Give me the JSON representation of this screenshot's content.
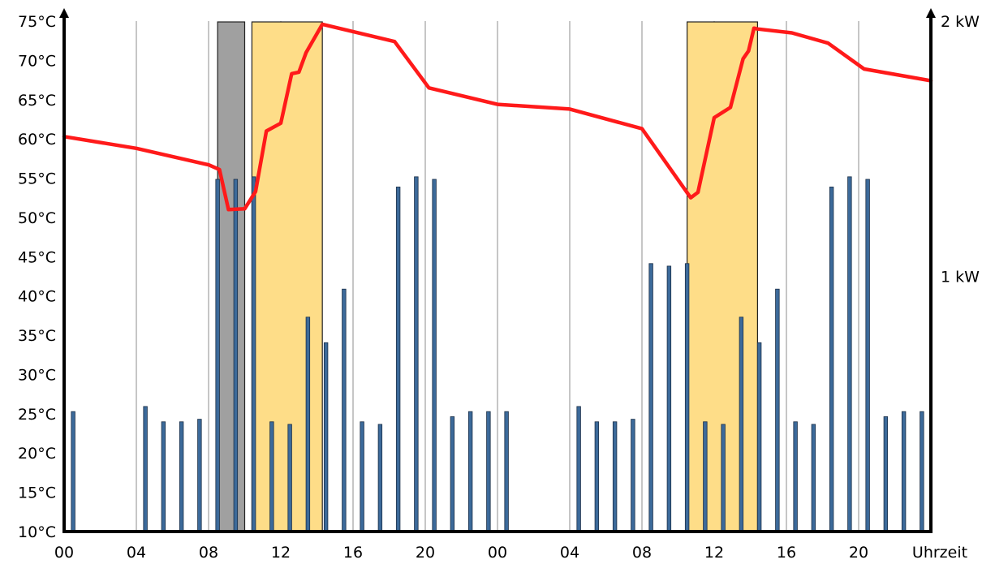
{
  "chart_data": {
    "type": "bar+line",
    "title": "",
    "xlabel": "Uhrzeit",
    "x_tick_labels": [
      "00",
      "04",
      "08",
      "12",
      "16",
      "20",
      "00",
      "04",
      "08",
      "12",
      "16",
      "20"
    ],
    "x_range_hours": [
      0,
      48
    ],
    "y_left": {
      "ticks": [
        "10°C",
        "15°C",
        "20°C",
        "25°C",
        "30°C",
        "35°C",
        "40°C",
        "45°C",
        "50°C",
        "55°C",
        "60°C",
        "65°C",
        "70°C",
        "75°C"
      ],
      "range": [
        10,
        75
      ],
      "unit": "°C"
    },
    "y_right": {
      "ticks": [
        "1 kW",
        "2 kW"
      ],
      "tick_values": [
        1,
        2
      ],
      "range": [
        0,
        2
      ],
      "unit": "kW"
    },
    "grid": {
      "vertical_every_hours": 4
    },
    "shaded_periods": [
      {
        "color": "#a0a0a0",
        "start_h": 8.5,
        "end_h": 10.0
      },
      {
        "color": "#fedd88",
        "start_h": 10.4,
        "end_h": 14.3
      },
      {
        "color": "#fedd88",
        "start_h": 34.5,
        "end_h": 38.4
      }
    ],
    "power_bars": {
      "color": "#3c6a9a",
      "axis": "right",
      "hours": [
        0.5,
        4.5,
        5.5,
        6.5,
        7.5,
        8.5,
        9.5,
        10.5,
        11.5,
        12.5,
        13.5,
        14.5,
        15.5,
        16.5,
        17.5,
        18.5,
        19.5,
        20.5,
        21.5,
        22.5,
        23.5,
        24.5,
        28.5,
        29.5,
        30.5,
        31.5,
        32.5,
        33.5,
        34.5,
        35.5,
        36.5,
        37.5,
        38.5,
        39.5,
        40.5,
        41.5,
        42.5,
        43.5,
        44.5,
        45.5,
        46.5,
        47.5
      ],
      "values_kw": [
        0.47,
        0.49,
        0.43,
        0.43,
        0.44,
        1.38,
        1.38,
        1.39,
        0.43,
        0.42,
        0.84,
        0.74,
        0.95,
        0.43,
        0.42,
        1.35,
        1.39,
        1.38,
        0.45,
        0.47,
        0.47,
        0.47,
        0.49,
        0.43,
        0.43,
        0.44,
        1.05,
        1.04,
        1.05,
        0.43,
        0.42,
        0.84,
        0.74,
        0.95,
        0.43,
        0.42,
        1.35,
        1.39,
        1.38,
        0.45,
        0.47,
        0.47
      ]
    },
    "series": [
      {
        "axis": "left",
        "color": "#ff1a1a",
        "x_hours": [
          0,
          4,
          8,
          8.6,
          9.1,
          10.0,
          10.6,
          11.2,
          12.0,
          12.6,
          13.0,
          13.4,
          14.3,
          18.3,
          20.2,
          24.0,
          28.0,
          32.0,
          34.7,
          35.1,
          36.0,
          36.9,
          37.6,
          37.9,
          38.2,
          38.4,
          40.3,
          42.3,
          44.3,
          48.0
        ],
        "y_celsius": [
          60.3,
          58.8,
          56.7,
          56.1,
          51.0,
          51.1,
          53.3,
          61.0,
          62.0,
          68.3,
          68.5,
          71.0,
          74.6,
          72.4,
          66.5,
          64.4,
          63.8,
          61.3,
          52.5,
          53.2,
          62.7,
          64.0,
          70.2,
          71.2,
          74.1,
          74.0,
          73.5,
          72.2,
          68.9,
          67.4
        ]
      }
    ]
  }
}
